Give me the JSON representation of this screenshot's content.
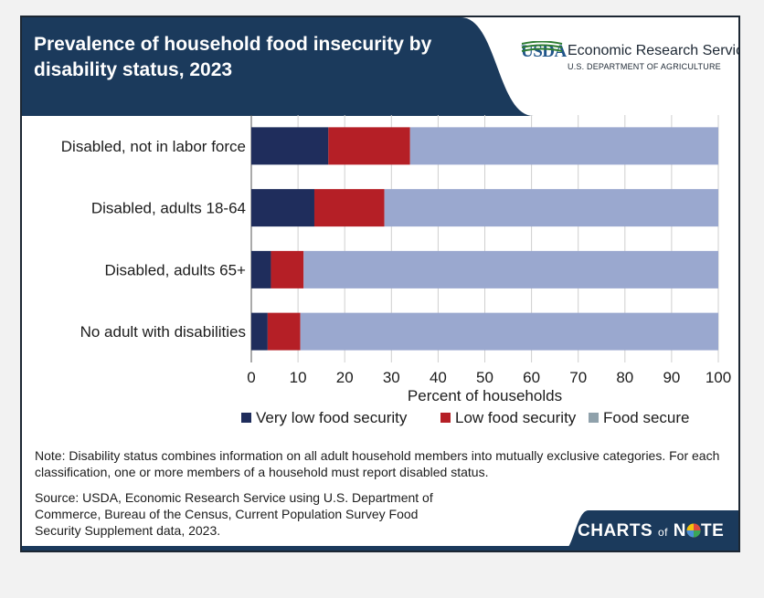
{
  "header": {
    "title": "Prevalence of household food insecurity by disability status, 2023",
    "logo_abbr": "USDA",
    "agency": "Economic Research Service",
    "department": "U.S. DEPARTMENT OF AGRICULTURE"
  },
  "colors": {
    "very_low": "#1f2d5c",
    "low": "#b51f26",
    "secure": "#9aa8cf",
    "header_bg": "#1b3a5c"
  },
  "chart_data": {
    "type": "bar",
    "orientation": "horizontal",
    "stacked": true,
    "categories": [
      "Disabled, not in labor force",
      "Disabled, adults 18-64",
      "Disabled, adults 65+",
      "No adult with disabilities"
    ],
    "series": [
      {
        "name": "Very low food security",
        "values": [
          16.5,
          13.5,
          4.2,
          3.5
        ]
      },
      {
        "name": "Low food security",
        "values": [
          17.5,
          15.0,
          7.0,
          7.0
        ]
      },
      {
        "name": "Food secure",
        "values": [
          66.0,
          71.5,
          88.8,
          89.5
        ]
      }
    ],
    "xlabel": "Percent of households",
    "xlim": [
      0,
      100
    ],
    "xticks": [
      "0",
      "10",
      "20",
      "30",
      "40",
      "50",
      "60",
      "70",
      "80",
      "90",
      "100"
    ],
    "grid": true,
    "legend": "bottom"
  },
  "note": "Note: Disability status combines information on all adult household members into mutually exclusive categories. For each classification, one or more members of a household must report disabled status.",
  "source": "Source: USDA, Economic Research Service using U.S. Department of Commerce, Bureau of the Census, Current Population Survey Food Security Supplement data, 2023.",
  "badge": {
    "part1": "CHARTS",
    "part2": "of",
    "part3": "N",
    "part4": "TE"
  }
}
